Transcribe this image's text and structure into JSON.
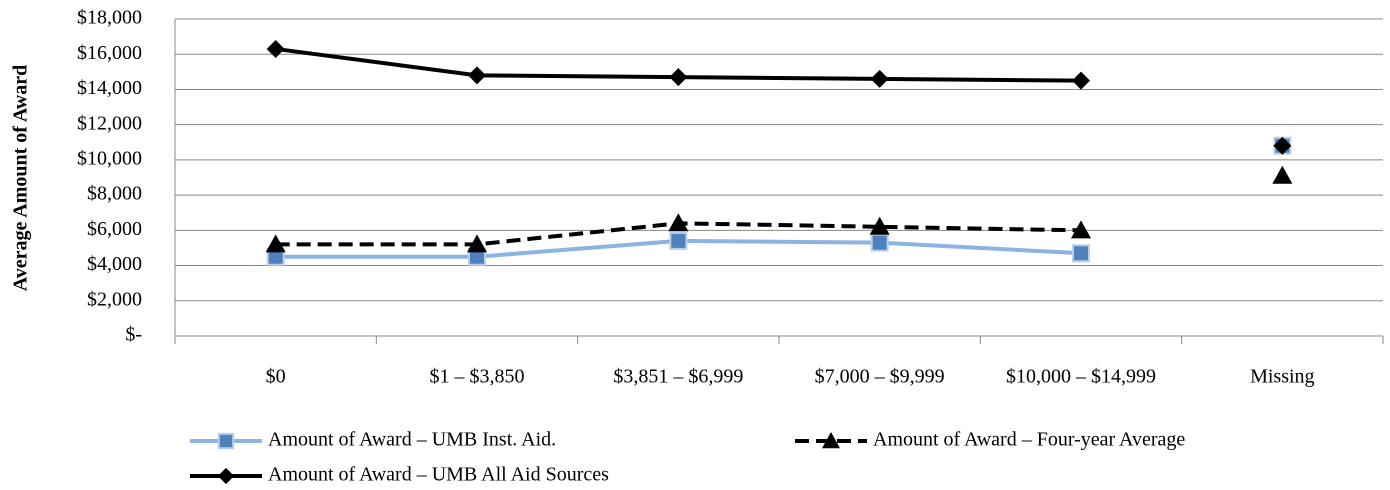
{
  "chart_data": {
    "type": "line",
    "y_label": "Average Amount of Award",
    "categories": [
      "$0",
      "$1 – $3,850",
      "$3,851 – $6,999",
      "$7,000 – $9,999",
      "$10,000 – $14,999",
      "Missing"
    ],
    "series": [
      {
        "name": "Amount of Award – UMB Inst. Aid.",
        "color": "#8db3e2",
        "marker": "square",
        "marker_color": "#4f81bd",
        "dash": false,
        "values": [
          4500,
          4500,
          5400,
          5300,
          4700,
          10800
        ]
      },
      {
        "name": "Amount of Award – Four-year Average",
        "color": "#000000",
        "marker": "triangle",
        "marker_color": "#000000",
        "dash": true,
        "values": [
          5200,
          5200,
          6400,
          6200,
          6000,
          9100
        ]
      },
      {
        "name": "Amount of Award – UMB All Aid Sources",
        "color": "#000000",
        "marker": "diamond",
        "marker_color": "#000000",
        "dash": false,
        "values": [
          16300,
          14800,
          14700,
          14600,
          14500,
          10800
        ]
      }
    ],
    "ylim": [
      0,
      18000
    ],
    "yticks": [
      {
        "value": 0,
        "label": "$-"
      },
      {
        "value": 2000,
        "label": "$2,000"
      },
      {
        "value": 4000,
        "label": "$4,000"
      },
      {
        "value": 6000,
        "label": "$6,000"
      },
      {
        "value": 8000,
        "label": "$8,000"
      },
      {
        "value": 10000,
        "label": "$10,000"
      },
      {
        "value": 12000,
        "label": "$12,000"
      },
      {
        "value": 14000,
        "label": "$14,000"
      },
      {
        "value": 16000,
        "label": "$16,000"
      },
      {
        "value": 18000,
        "label": "$18,000"
      }
    ],
    "grid": true
  }
}
